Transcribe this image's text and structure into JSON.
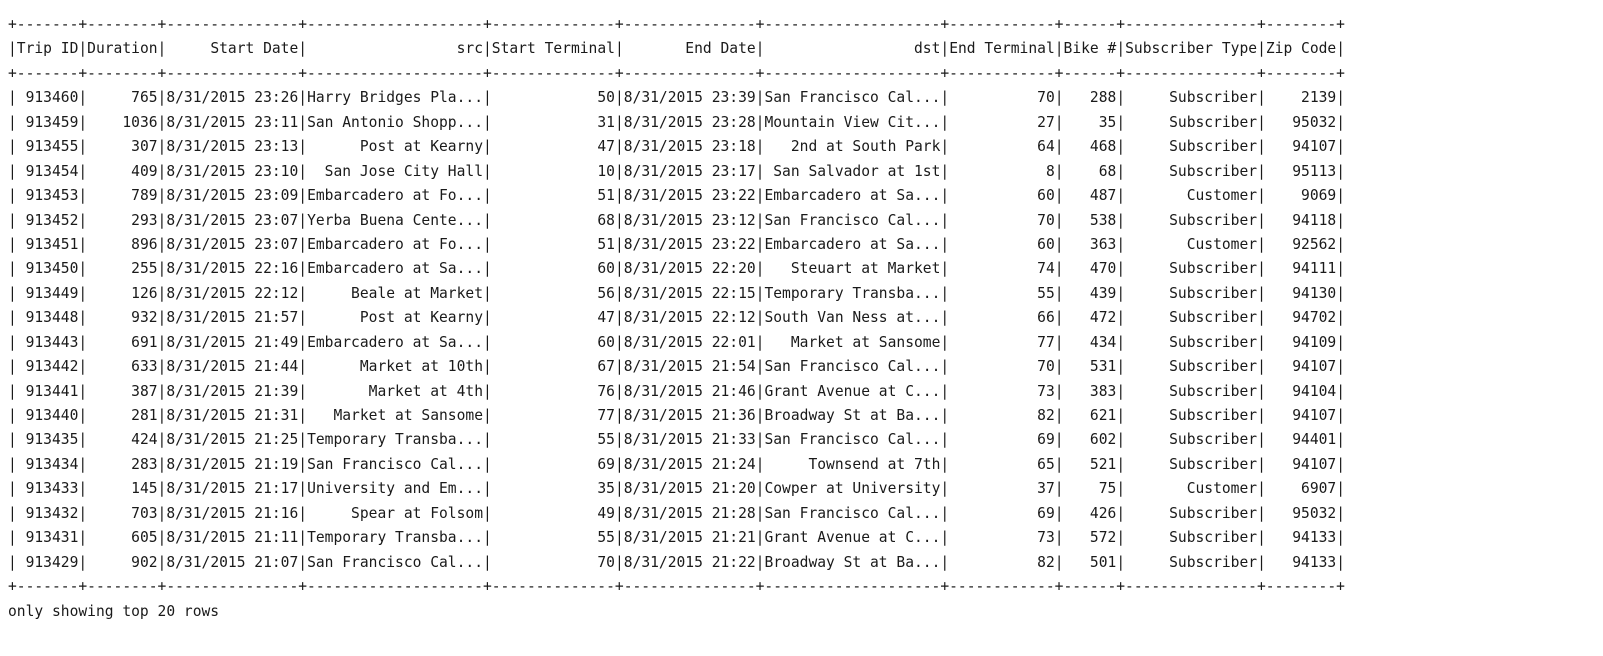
{
  "columns": [
    {
      "label": "Trip ID",
      "width": 7
    },
    {
      "label": "Duration",
      "width": 8
    },
    {
      "label": "Start Date",
      "width": 15
    },
    {
      "label": "src",
      "width": 20
    },
    {
      "label": "Start Terminal",
      "width": 14
    },
    {
      "label": "End Date",
      "width": 15
    },
    {
      "label": "dst",
      "width": 20
    },
    {
      "label": "End Terminal",
      "width": 12
    },
    {
      "label": "Bike #",
      "width": 6
    },
    {
      "label": "Subscriber Type",
      "width": 15
    },
    {
      "label": "Zip Code",
      "width": 8
    }
  ],
  "rows": [
    [
      "913460",
      "765",
      "8/31/2015 23:26",
      "Harry Bridges Pla...",
      "50",
      "8/31/2015 23:39",
      "San Francisco Cal...",
      "70",
      "288",
      "Subscriber",
      "2139"
    ],
    [
      "913459",
      "1036",
      "8/31/2015 23:11",
      "San Antonio Shopp...",
      "31",
      "8/31/2015 23:28",
      "Mountain View Cit...",
      "27",
      "35",
      "Subscriber",
      "95032"
    ],
    [
      "913455",
      "307",
      "8/31/2015 23:13",
      "Post at Kearny",
      "47",
      "8/31/2015 23:18",
      "2nd at South Park",
      "64",
      "468",
      "Subscriber",
      "94107"
    ],
    [
      "913454",
      "409",
      "8/31/2015 23:10",
      "San Jose City Hall",
      "10",
      "8/31/2015 23:17",
      "San Salvador at 1st",
      "8",
      "68",
      "Subscriber",
      "95113"
    ],
    [
      "913453",
      "789",
      "8/31/2015 23:09",
      "Embarcadero at Fo...",
      "51",
      "8/31/2015 23:22",
      "Embarcadero at Sa...",
      "60",
      "487",
      "Customer",
      "9069"
    ],
    [
      "913452",
      "293",
      "8/31/2015 23:07",
      "Yerba Buena Cente...",
      "68",
      "8/31/2015 23:12",
      "San Francisco Cal...",
      "70",
      "538",
      "Subscriber",
      "94118"
    ],
    [
      "913451",
      "896",
      "8/31/2015 23:07",
      "Embarcadero at Fo...",
      "51",
      "8/31/2015 23:22",
      "Embarcadero at Sa...",
      "60",
      "363",
      "Customer",
      "92562"
    ],
    [
      "913450",
      "255",
      "8/31/2015 22:16",
      "Embarcadero at Sa...",
      "60",
      "8/31/2015 22:20",
      "Steuart at Market",
      "74",
      "470",
      "Subscriber",
      "94111"
    ],
    [
      "913449",
      "126",
      "8/31/2015 22:12",
      "Beale at Market",
      "56",
      "8/31/2015 22:15",
      "Temporary Transba...",
      "55",
      "439",
      "Subscriber",
      "94130"
    ],
    [
      "913448",
      "932",
      "8/31/2015 21:57",
      "Post at Kearny",
      "47",
      "8/31/2015 22:12",
      "South Van Ness at...",
      "66",
      "472",
      "Subscriber",
      "94702"
    ],
    [
      "913443",
      "691",
      "8/31/2015 21:49",
      "Embarcadero at Sa...",
      "60",
      "8/31/2015 22:01",
      "Market at Sansome",
      "77",
      "434",
      "Subscriber",
      "94109"
    ],
    [
      "913442",
      "633",
      "8/31/2015 21:44",
      "Market at 10th",
      "67",
      "8/31/2015 21:54",
      "San Francisco Cal...",
      "70",
      "531",
      "Subscriber",
      "94107"
    ],
    [
      "913441",
      "387",
      "8/31/2015 21:39",
      "Market at 4th",
      "76",
      "8/31/2015 21:46",
      "Grant Avenue at C...",
      "73",
      "383",
      "Subscriber",
      "94104"
    ],
    [
      "913440",
      "281",
      "8/31/2015 21:31",
      "Market at Sansome",
      "77",
      "8/31/2015 21:36",
      "Broadway St at Ba...",
      "82",
      "621",
      "Subscriber",
      "94107"
    ],
    [
      "913435",
      "424",
      "8/31/2015 21:25",
      "Temporary Transba...",
      "55",
      "8/31/2015 21:33",
      "San Francisco Cal...",
      "69",
      "602",
      "Subscriber",
      "94401"
    ],
    [
      "913434",
      "283",
      "8/31/2015 21:19",
      "San Francisco Cal...",
      "69",
      "8/31/2015 21:24",
      "Townsend at 7th",
      "65",
      "521",
      "Subscriber",
      "94107"
    ],
    [
      "913433",
      "145",
      "8/31/2015 21:17",
      "University and Em...",
      "35",
      "8/31/2015 21:20",
      "Cowper at University",
      "37",
      "75",
      "Customer",
      "6907"
    ],
    [
      "913432",
      "703",
      "8/31/2015 21:16",
      "Spear at Folsom",
      "49",
      "8/31/2015 21:28",
      "San Francisco Cal...",
      "69",
      "426",
      "Subscriber",
      "95032"
    ],
    [
      "913431",
      "605",
      "8/31/2015 21:11",
      "Temporary Transba...",
      "55",
      "8/31/2015 21:21",
      "Grant Avenue at C...",
      "73",
      "572",
      "Subscriber",
      "94133"
    ],
    [
      "913429",
      "902",
      "8/31/2015 21:07",
      "San Francisco Cal...",
      "70",
      "8/31/2015 21:22",
      "Broadway St at Ba...",
      "82",
      "501",
      "Subscriber",
      "94133"
    ]
  ],
  "footer": "only showing top 20 rows"
}
